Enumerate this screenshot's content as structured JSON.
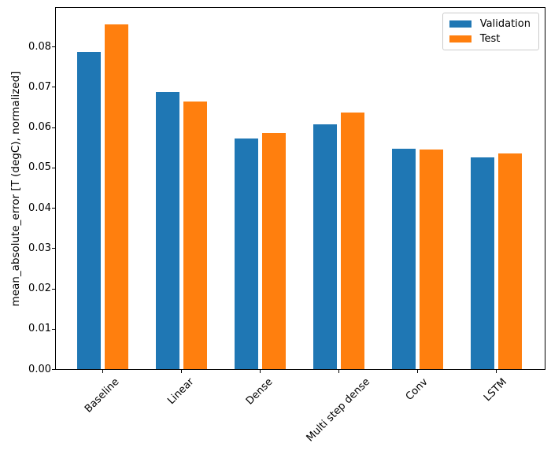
{
  "chart_data": {
    "type": "bar",
    "title": "",
    "xlabel": "",
    "ylabel": "mean_absolute_error [T (degC), normalized]",
    "categories": [
      "Baseline",
      "Linear",
      "Dense",
      "Multi step dense",
      "Conv",
      "LSTM"
    ],
    "series": [
      {
        "name": "Validation",
        "color": "#1f77b4",
        "values": [
          0.0786,
          0.0688,
          0.0572,
          0.0608,
          0.0546,
          0.0525
        ]
      },
      {
        "name": "Test",
        "color": "#ff7f0e",
        "values": [
          0.0855,
          0.0664,
          0.0585,
          0.0636,
          0.0544,
          0.0535
        ]
      }
    ],
    "ylim": [
      0,
      0.0898
    ],
    "ytick_labels": [
      "0.00",
      "0.01",
      "0.02",
      "0.03",
      "0.04",
      "0.05",
      "0.06",
      "0.07",
      "0.08"
    ],
    "ytick_values": [
      0.0,
      0.01,
      0.02,
      0.03,
      0.04,
      0.05,
      0.06,
      0.07,
      0.08
    ],
    "grid": false,
    "legend_position": "upper right",
    "xtick_rotation": 45,
    "bar_width_units": 0.3,
    "bar_offset_units": 0.175
  }
}
